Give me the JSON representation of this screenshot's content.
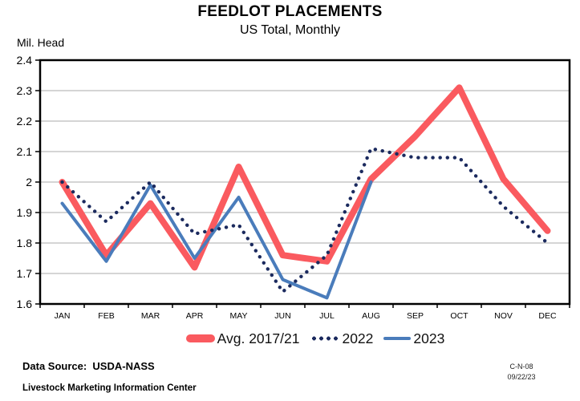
{
  "header": {
    "title": "FEEDLOT PLACEMENTS",
    "subtitle": "US Total, Monthly"
  },
  "chart_data": {
    "type": "line",
    "title": "FEEDLOT PLACEMENTS",
    "subtitle": "US Total, Monthly",
    "ylabel": "Mil. Head",
    "xlabel": "",
    "ylim": [
      1.6,
      2.4
    ],
    "grid": "horizontal",
    "legend_position": "bottom",
    "y_tick_labels": [
      "2.4",
      "2.3",
      "2.2",
      "2.1",
      "2",
      "1.9",
      "1.8",
      "1.7",
      "1.6"
    ],
    "categories": [
      "JAN",
      "FEB",
      "MAR",
      "APR",
      "MAY",
      "JUN",
      "JUL",
      "AUG",
      "SEP",
      "OCT",
      "NOV",
      "DEC"
    ],
    "series": [
      {
        "name": "Avg. 2017/21",
        "color": "#FA5A5F",
        "style": "solid-thick",
        "values": [
          2.0,
          1.76,
          1.93,
          1.72,
          2.05,
          1.76,
          1.74,
          2.01,
          2.15,
          2.31,
          2.01,
          1.84
        ]
      },
      {
        "name": "2022",
        "color": "#1B2A5E",
        "style": "dotted",
        "values": [
          2.0,
          1.87,
          2.0,
          1.83,
          1.86,
          1.64,
          1.76,
          2.11,
          2.08,
          2.08,
          1.92,
          1.8
        ]
      },
      {
        "name": "2023",
        "color": "#4A7CBB",
        "style": "solid",
        "values": [
          1.93,
          1.74,
          1.99,
          1.75,
          1.95,
          1.68,
          1.62,
          2.0,
          null,
          null,
          null,
          null
        ]
      }
    ],
    "axis_color": "#000000",
    "gridline_color": "#ABABAB"
  },
  "footer": {
    "data_source": "Data Source:  USDA-NASS",
    "org": "Livestock Marketing Information Center",
    "chart_id": "C-N-08",
    "date": "09/22/23"
  }
}
